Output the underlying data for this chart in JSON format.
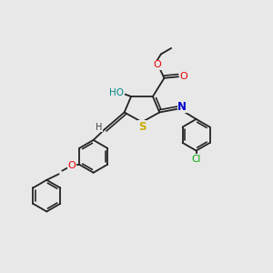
{
  "bg_color": "#e8e8e8",
  "bond_color": "#222222",
  "colors": {
    "O": "#ee0000",
    "N": "#0000cc",
    "S": "#ccaa00",
    "Cl": "#00aa00",
    "HO": "#008888",
    "H": "#444444",
    "C": "#222222"
  },
  "font_size": 7.0,
  "bond_width": 1.3
}
